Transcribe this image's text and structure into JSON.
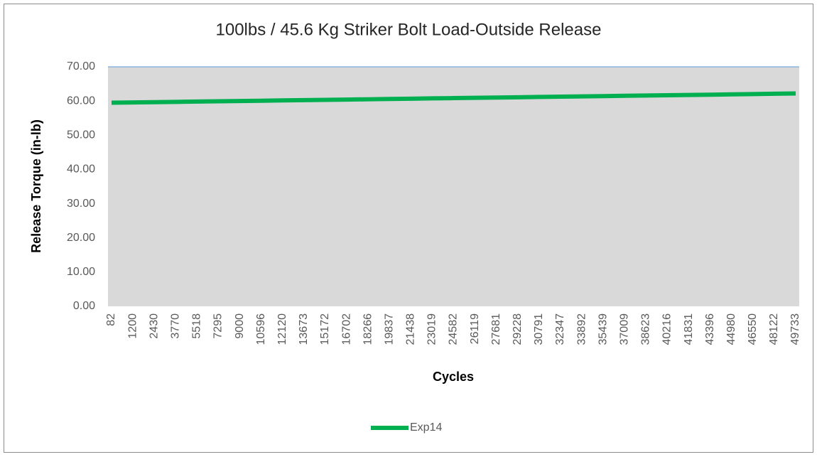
{
  "chart_data": {
    "type": "line",
    "title": "100lbs / 45.6 Kg Striker Bolt Load-Outside Release",
    "x_label": "Cycles",
    "y_label": "Release Torque (in-lb)",
    "categories": [
      "82",
      "1200",
      "2430",
      "3770",
      "5518",
      "7295",
      "9000",
      "10596",
      "12120",
      "13673",
      "15172",
      "16702",
      "18266",
      "19837",
      "21438",
      "23019",
      "24582",
      "26119",
      "27681",
      "29228",
      "30791",
      "32347",
      "33892",
      "35439",
      "37009",
      "38623",
      "40216",
      "41831",
      "43396",
      "44980",
      "46550",
      "48122",
      "49733"
    ],
    "series": [
      {
        "name": "Exp14",
        "color": "#00b050",
        "values": [
          59.5,
          59.58,
          59.67,
          59.75,
          59.84,
          59.92,
          60.01,
          60.09,
          60.18,
          60.26,
          60.34,
          60.43,
          60.51,
          60.6,
          60.68,
          60.77,
          60.85,
          60.93,
          61.02,
          61.1,
          61.19,
          61.27,
          61.36,
          61.44,
          61.53,
          61.61,
          61.69,
          61.78,
          61.86,
          61.95,
          62.03,
          62.12,
          62.2
        ]
      }
    ],
    "ylim": [
      0,
      70
    ],
    "yticks": [
      {
        "value": 0,
        "label": "0.00"
      },
      {
        "value": 10,
        "label": "10.00"
      },
      {
        "value": 20,
        "label": "20.00"
      },
      {
        "value": 30,
        "label": "30.00"
      },
      {
        "value": 40,
        "label": "40.00"
      },
      {
        "value": 50,
        "label": "50.00"
      },
      {
        "value": 60,
        "label": "60.00"
      },
      {
        "value": 70,
        "label": "70.00"
      }
    ],
    "grid": false,
    "legend": "bottom"
  }
}
